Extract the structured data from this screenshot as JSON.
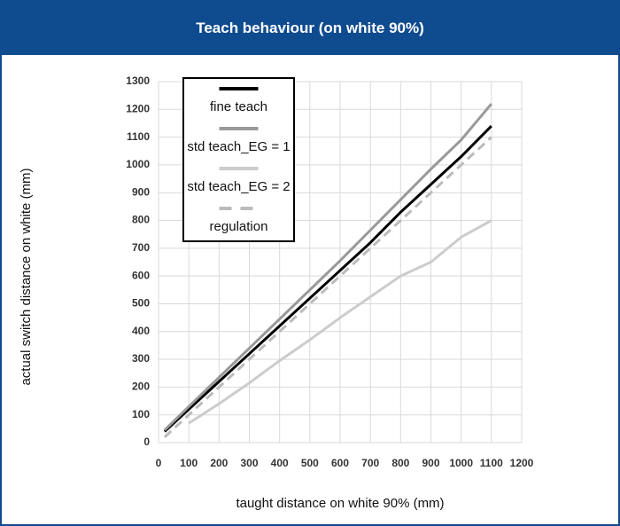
{
  "chart_data": {
    "type": "line",
    "title": "Teach behaviour (on white 90%)",
    "x_label": "taught distance on white 90%  (mm)",
    "y_label": "actual switch distance on white (mm)",
    "x": [
      20,
      100,
      200,
      300,
      400,
      500,
      600,
      700,
      800,
      900,
      1000,
      1100
    ],
    "series": [
      {
        "name": "fine teach",
        "color": "#000000",
        "values": [
          40,
          120,
          220,
          320,
          420,
          520,
          620,
          720,
          830,
          930,
          1030,
          1140
        ]
      },
      {
        "name": "std teach_EG = 1",
        "color": "#999999",
        "values": [
          45,
          130,
          235,
          340,
          445,
          550,
          655,
          765,
          875,
          985,
          1090,
          1220
        ]
      },
      {
        "name": "std teach_EG = 2",
        "color": "#cccccc",
        "values": [
          null,
          70,
          140,
          215,
          295,
          370,
          450,
          525,
          600,
          650,
          740,
          800
        ]
      },
      {
        "name": "regulation",
        "color": "#bbbbbb",
        "dashed": true,
        "values": [
          20,
          100,
          200,
          300,
          400,
          500,
          600,
          700,
          800,
          900,
          1000,
          1100
        ]
      }
    ],
    "xlim": [
      0,
      1200
    ],
    "xticks": [
      0,
      100,
      200,
      300,
      400,
      500,
      600,
      700,
      800,
      900,
      1000,
      1100,
      1200
    ],
    "ylim": [
      0,
      1300
    ],
    "yticks": [
      0,
      100,
      200,
      300,
      400,
      500,
      600,
      700,
      800,
      900,
      1000,
      1100,
      1200,
      1300
    ],
    "grid": true,
    "legend": "upper left"
  }
}
